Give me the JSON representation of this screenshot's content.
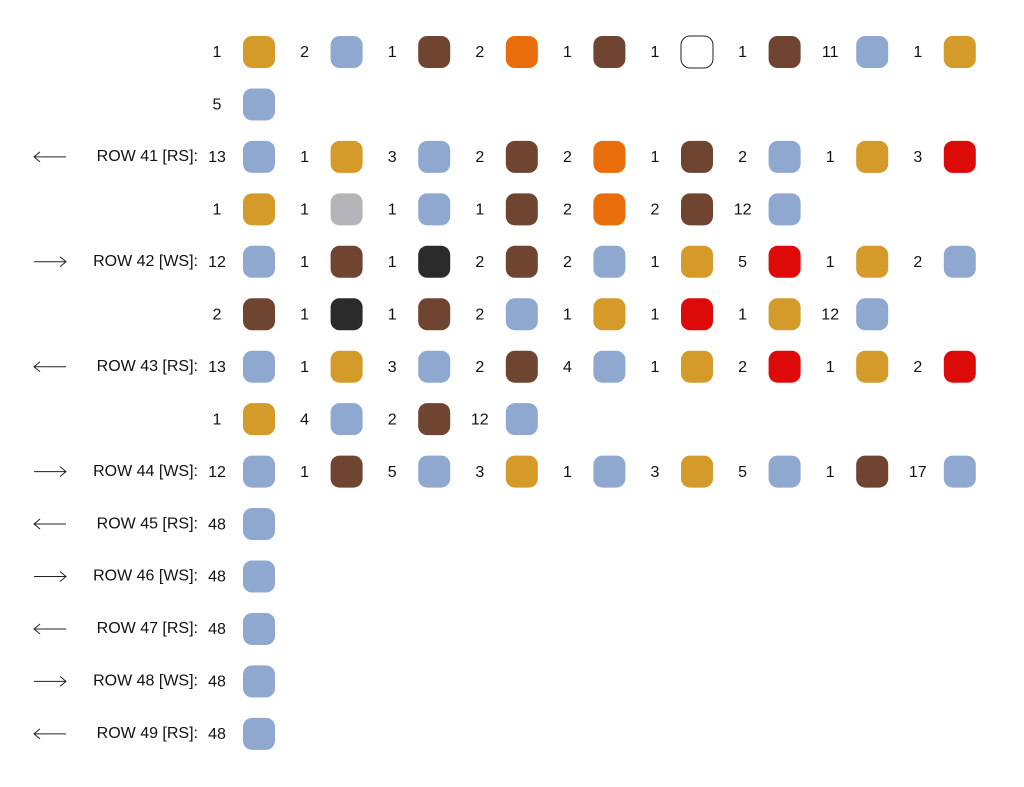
{
  "pattern": {
    "lines": [
      {
        "stitches": [
          {
            "count": "1",
            "color": "#d49a2a"
          },
          {
            "count": "2",
            "color": "#8fa8d0"
          },
          {
            "count": "1",
            "color": "#6f4430"
          },
          {
            "count": "2",
            "color": "#ea6d0b"
          },
          {
            "count": "1",
            "color": "#6f4430"
          },
          {
            "count": "1",
            "color": "#ffffff"
          },
          {
            "count": "1",
            "color": "#6f4430"
          },
          {
            "count": "11",
            "color": "#8fa8d0"
          },
          {
            "count": "1",
            "color": "#d49a2a"
          }
        ]
      },
      {
        "stitches": [
          {
            "count": "5",
            "color": "#8fa8d0"
          }
        ]
      },
      {
        "label": "ROW 41 [RS]:",
        "arrow": "left",
        "stitches": [
          {
            "count": "13",
            "color": "#8fa8d0"
          },
          {
            "count": "1",
            "color": "#d49a2a"
          },
          {
            "count": "3",
            "color": "#8fa8d0"
          },
          {
            "count": "2",
            "color": "#6f4430"
          },
          {
            "count": "2",
            "color": "#ea6d0b"
          },
          {
            "count": "1",
            "color": "#6f4430"
          },
          {
            "count": "2",
            "color": "#8fa8d0"
          },
          {
            "count": "1",
            "color": "#d49a2a"
          },
          {
            "count": "3",
            "color": "#dd0a0a"
          }
        ]
      },
      {
        "stitches": [
          {
            "count": "1",
            "color": "#d49a2a"
          },
          {
            "count": "1",
            "color": "#b5b4b8"
          },
          {
            "count": "1",
            "color": "#8fa8d0"
          },
          {
            "count": "1",
            "color": "#6f4430"
          },
          {
            "count": "2",
            "color": "#ea6d0b"
          },
          {
            "count": "2",
            "color": "#6f4430"
          },
          {
            "count": "12",
            "color": "#8fa8d0"
          }
        ]
      },
      {
        "label": "ROW 42 [WS]:",
        "arrow": "right",
        "stitches": [
          {
            "count": "12",
            "color": "#8fa8d0"
          },
          {
            "count": "1",
            "color": "#6f4430"
          },
          {
            "count": "1",
            "color": "#2b2b2b"
          },
          {
            "count": "2",
            "color": "#6f4430"
          },
          {
            "count": "2",
            "color": "#8fa8d0"
          },
          {
            "count": "1",
            "color": "#d49a2a"
          },
          {
            "count": "5",
            "color": "#dd0a0a"
          },
          {
            "count": "1",
            "color": "#d49a2a"
          },
          {
            "count": "2",
            "color": "#8fa8d0"
          }
        ]
      },
      {
        "stitches": [
          {
            "count": "2",
            "color": "#6f4430"
          },
          {
            "count": "1",
            "color": "#2b2b2b"
          },
          {
            "count": "1",
            "color": "#6f4430"
          },
          {
            "count": "2",
            "color": "#8fa8d0"
          },
          {
            "count": "1",
            "color": "#d49a2a"
          },
          {
            "count": "1",
            "color": "#dd0a0a"
          },
          {
            "count": "1",
            "color": "#d49a2a"
          },
          {
            "count": "12",
            "color": "#8fa8d0"
          }
        ]
      },
      {
        "label": "ROW 43 [RS]:",
        "arrow": "left",
        "stitches": [
          {
            "count": "13",
            "color": "#8fa8d0"
          },
          {
            "count": "1",
            "color": "#d49a2a"
          },
          {
            "count": "3",
            "color": "#8fa8d0"
          },
          {
            "count": "2",
            "color": "#6f4430"
          },
          {
            "count": "4",
            "color": "#8fa8d0"
          },
          {
            "count": "1",
            "color": "#d49a2a"
          },
          {
            "count": "2",
            "color": "#dd0a0a"
          },
          {
            "count": "1",
            "color": "#d49a2a"
          },
          {
            "count": "2",
            "color": "#dd0a0a"
          }
        ]
      },
      {
        "stitches": [
          {
            "count": "1",
            "color": "#d49a2a"
          },
          {
            "count": "4",
            "color": "#8fa8d0"
          },
          {
            "count": "2",
            "color": "#6f4430"
          },
          {
            "count": "12",
            "color": "#8fa8d0"
          }
        ]
      },
      {
        "label": "ROW 44 [WS]:",
        "arrow": "right",
        "stitches": [
          {
            "count": "12",
            "color": "#8fa8d0"
          },
          {
            "count": "1",
            "color": "#6f4430"
          },
          {
            "count": "5",
            "color": "#8fa8d0"
          },
          {
            "count": "3",
            "color": "#d49a2a"
          },
          {
            "count": "1",
            "color": "#8fa8d0"
          },
          {
            "count": "3",
            "color": "#d49a2a"
          },
          {
            "count": "5",
            "color": "#8fa8d0"
          },
          {
            "count": "1",
            "color": "#6f4430"
          },
          {
            "count": "17",
            "color": "#8fa8d0"
          }
        ]
      },
      {
        "label": "ROW 45 [RS]:",
        "arrow": "left",
        "stitches": [
          {
            "count": "48",
            "color": "#8fa8d0"
          }
        ]
      },
      {
        "label": "ROW 46 [WS]:",
        "arrow": "right",
        "stitches": [
          {
            "count": "48",
            "color": "#8fa8d0"
          }
        ]
      },
      {
        "label": "ROW 47 [RS]:",
        "arrow": "left",
        "stitches": [
          {
            "count": "48",
            "color": "#8fa8d0"
          }
        ]
      },
      {
        "label": "ROW 48 [WS]:",
        "arrow": "right",
        "stitches": [
          {
            "count": "48",
            "color": "#8fa8d0"
          }
        ]
      },
      {
        "label": "ROW 49 [RS]:",
        "arrow": "left",
        "stitches": [
          {
            "count": "48",
            "color": "#8fa8d0"
          }
        ]
      }
    ]
  }
}
